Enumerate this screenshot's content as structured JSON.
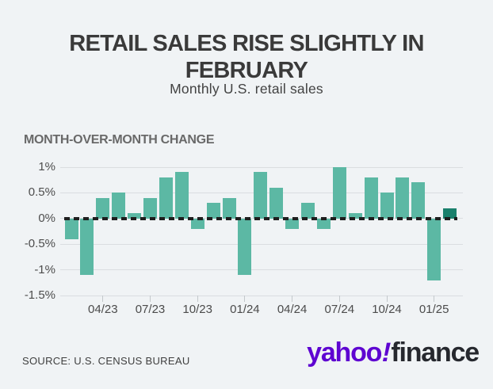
{
  "header": {
    "title": "RETAIL SALES RISE SLIGHTLY IN FEBRUARY",
    "subtitle": "Monthly U.S. retail sales"
  },
  "chart": {
    "section_label": "MONTH-OVER-MONTH CHANGE"
  },
  "chart_data": {
    "type": "bar",
    "title": "MONTH-OVER-MONTH CHANGE",
    "x": [
      "02/23",
      "03/23",
      "04/23",
      "05/23",
      "06/23",
      "07/23",
      "08/23",
      "09/23",
      "10/23",
      "11/23",
      "12/23",
      "01/24",
      "02/24",
      "03/24",
      "04/24",
      "05/24",
      "06/24",
      "07/24",
      "08/24",
      "09/24",
      "10/24",
      "11/24",
      "12/24",
      "01/25",
      "02/25"
    ],
    "values": [
      -0.4,
      -1.1,
      0.4,
      0.5,
      0.1,
      0.4,
      0.8,
      0.9,
      -0.2,
      0.3,
      0.4,
      -1.1,
      0.9,
      0.6,
      -0.2,
      0.3,
      -0.2,
      1.0,
      0.1,
      0.8,
      0.5,
      0.8,
      0.7,
      -1.2,
      0.2
    ],
    "unit": "%",
    "x_tick_labels": [
      "04/23",
      "07/23",
      "10/23",
      "01/24",
      "04/24",
      "07/24",
      "10/24",
      "01/25"
    ],
    "y_ticks": [
      1,
      0.5,
      0,
      -0.5,
      -1,
      -1.5
    ],
    "y_tick_labels": [
      "1%",
      "0.5%",
      "0%",
      "-0.5%",
      "-1%",
      "-1.5%"
    ],
    "ylim": [
      -1.5,
      1
    ],
    "grid": true,
    "legend": false,
    "bar_color": "#5cb8a4",
    "highlight_color": "#1a806c",
    "highlight_index": 24,
    "zero_line_style": "dashed",
    "zero_line_color": "#1e1e1e"
  },
  "footer": {
    "source": "SOURCE: U.S. CENSUS BUREAU",
    "logo": {
      "part_yahoo": "yahoo",
      "part_bang": "!",
      "part_finance": "finance",
      "purple": "#5e04d1",
      "dark": "#26282e"
    }
  }
}
